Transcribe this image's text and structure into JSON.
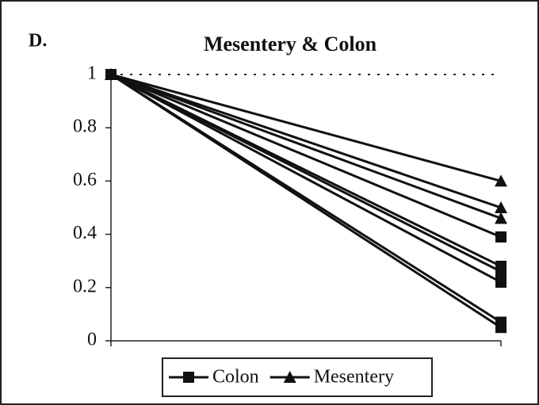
{
  "chart_data": {
    "type": "line",
    "panel_label": "D.",
    "title": "Mesentery & Colon",
    "categories": [
      null,
      null
    ],
    "series": [
      {
        "name": "Colon",
        "marker": "square",
        "color": "#111111",
        "lines": [
          [
            1,
            0.39
          ],
          [
            1,
            0.28
          ],
          [
            1,
            0.26
          ],
          [
            1,
            0.22
          ],
          [
            1,
            0.07
          ],
          [
            1,
            0.05
          ]
        ]
      },
      {
        "name": "Mesentery",
        "marker": "triangle",
        "color": "#111111",
        "lines": [
          [
            1,
            0.6
          ],
          [
            1,
            0.5
          ],
          [
            1,
            0.46
          ]
        ]
      }
    ],
    "ylim": [
      0,
      1
    ],
    "yticks": [
      0,
      0.2,
      0.4,
      0.6,
      0.8,
      1
    ],
    "reference_line": 1,
    "legend": "bottom"
  }
}
